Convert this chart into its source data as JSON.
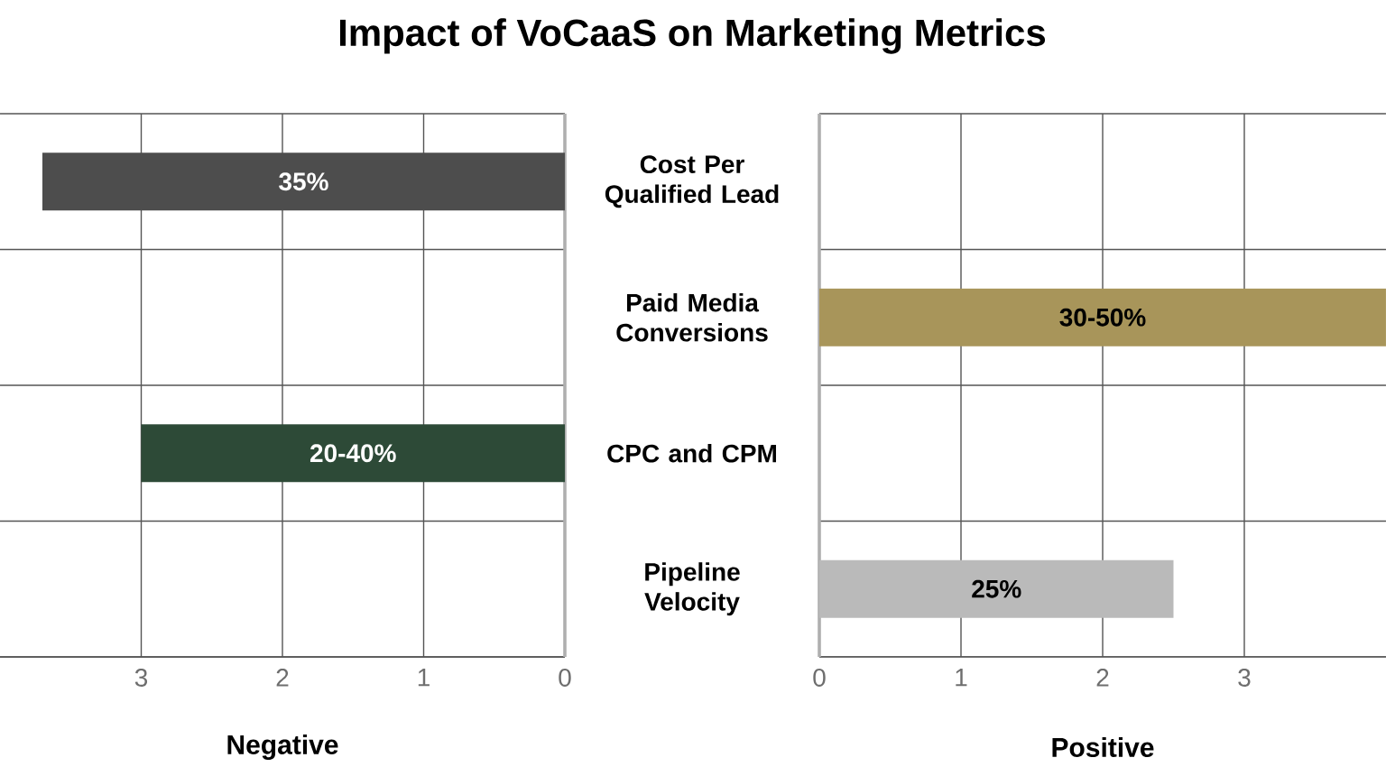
{
  "chart_data": [
    {
      "type": "bar",
      "orientation": "horizontal",
      "title": "Impact of VoCaaS on Marketing Metrics",
      "xlabel": "Negative",
      "categories": [
        "Cost Per Qualified Lead",
        null,
        "CPC and CPM",
        null
      ],
      "values": [
        3.7,
        null,
        3.0,
        null
      ],
      "colors": [
        "#4d4d4d",
        null,
        "#2d4a37",
        null
      ],
      "annotations": [
        "35%",
        "20-40%"
      ],
      "xlim": [
        4,
        0
      ],
      "xticks": [
        0,
        1,
        2,
        3
      ],
      "grid": true
    },
    {
      "type": "bar",
      "orientation": "horizontal",
      "xlabel": "Positive",
      "categories": [
        null,
        "Paid Media Conversions",
        null,
        "Pipeline Velocity"
      ],
      "values": [
        null,
        4.0,
        null,
        2.5
      ],
      "colors": [
        null,
        "#a8955a",
        null,
        "#bababa"
      ],
      "annotations": [
        "30-50%",
        "25%"
      ],
      "xlim": [
        0,
        4
      ],
      "xticks": [
        0,
        1,
        2,
        3
      ],
      "grid": true
    }
  ]
}
